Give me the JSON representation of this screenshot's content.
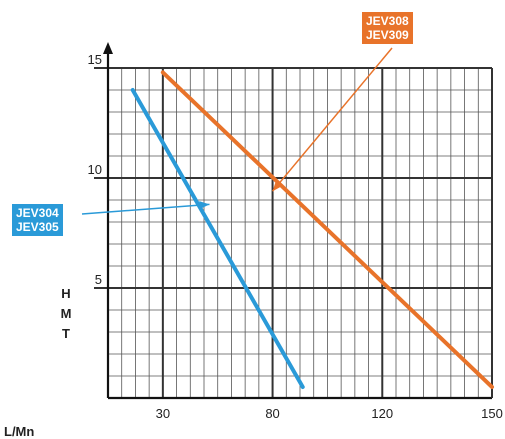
{
  "chart_data": {
    "type": "line",
    "xlabel": "L/Mn",
    "ylabel_letters": [
      "H",
      "M",
      "T"
    ],
    "x_ticks": [
      {
        "value": 20,
        "label": "30"
      },
      {
        "value": 60,
        "label": "80"
      },
      {
        "value": 100,
        "label": "120"
      },
      {
        "value": 140,
        "label": "150"
      }
    ],
    "y_ticks": [
      5,
      10,
      15
    ],
    "xlim": [
      0,
      140
    ],
    "ylim": [
      0,
      15
    ],
    "grid": true,
    "series": [
      {
        "labels": [
          "JEV304",
          "JEV305"
        ],
        "color": "#2a9ad8",
        "points": [
          [
            9,
            14
          ],
          [
            71,
            0.5
          ]
        ],
        "label_target": [
          37,
          8.8
        ]
      },
      {
        "labels": [
          "JEV308",
          "JEV309"
        ],
        "color": "#e8732a",
        "points": [
          [
            20,
            14.8
          ],
          [
            140,
            0.5
          ]
        ],
        "label_target": [
          60,
          9.4
        ]
      }
    ]
  }
}
